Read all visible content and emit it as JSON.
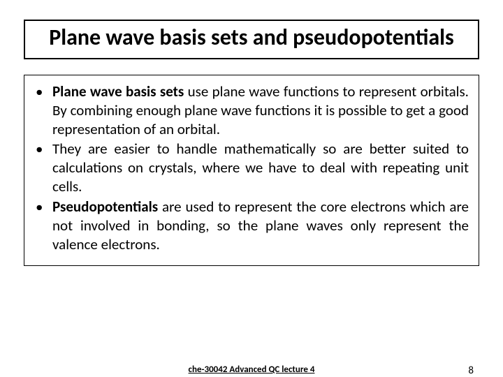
{
  "title": "Plane wave basis sets and pseudopotentials",
  "bullets": [
    {
      "lead": "Plane wave basis sets",
      "rest": " use plane wave functions to represent orbitals. By combining enough plane wave functions it is possible to get a good representation of an orbital."
    },
    {
      "lead": "",
      "rest": "They are easier to handle mathematically so are better suited to calculations on crystals, where we have to deal with repeating unit cells."
    },
    {
      "lead": "Pseudopotentials",
      "rest": " are used to represent the core electrons which are not involved in bonding, so the plane waves only represent the valence electrons."
    }
  ],
  "footer": {
    "center": "che-30042 Advanced QC lecture 4",
    "page": "8"
  },
  "style": {
    "background": "#ffffff",
    "text_color": "#000000",
    "title_fontsize": 32,
    "body_fontsize": 21,
    "footer_fontsize": 13,
    "border_color": "#000000",
    "bullet_marker": "•"
  }
}
